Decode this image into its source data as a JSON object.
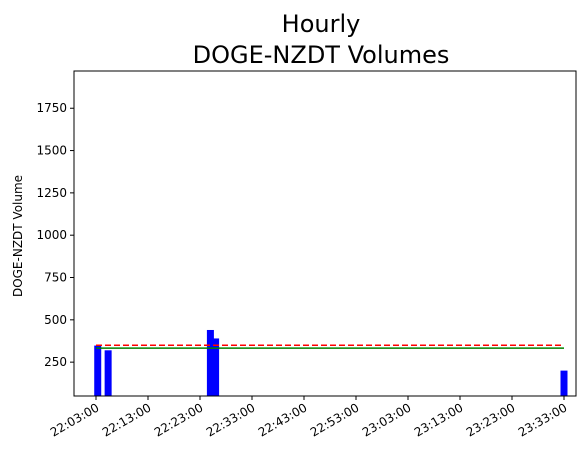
{
  "chart_data": {
    "type": "bar",
    "title_lines": [
      "Hourly",
      "DOGE-NZDT Volumes"
    ],
    "xlabel": "",
    "ylabel": "DOGE-NZDT Volume",
    "x_range": [
      "22:03:00",
      "23:34:20"
    ],
    "ylim": [
      50,
      1970
    ],
    "x_ticks": [
      "22:03:00",
      "22:13:00",
      "22:23:00",
      "22:33:00",
      "22:43:00",
      "22:53:00",
      "23:03:00",
      "23:13:00",
      "23:23:00",
      "23:33:00"
    ],
    "y_ticks": [
      250,
      500,
      750,
      1000,
      1250,
      1500,
      1750
    ],
    "bars": [
      {
        "x": "22:03:20",
        "value": 348
      },
      {
        "x": "22:05:20",
        "value": 320
      },
      {
        "x": "22:25:00",
        "value": 440
      },
      {
        "x": "22:26:00",
        "value": 390
      },
      {
        "x": "23:33:00",
        "value": 200
      }
    ],
    "reference_lines": [
      {
        "style": "dashed",
        "color": "#ff0000",
        "value": 350,
        "x_start": "22:03:00",
        "x_end": "23:33:00"
      },
      {
        "style": "solid",
        "color": "#008000",
        "value": 333,
        "x_start": "22:03:00",
        "x_end": "23:33:00"
      }
    ],
    "bar_color": "#0000ff",
    "grid": false,
    "legend": "none"
  }
}
